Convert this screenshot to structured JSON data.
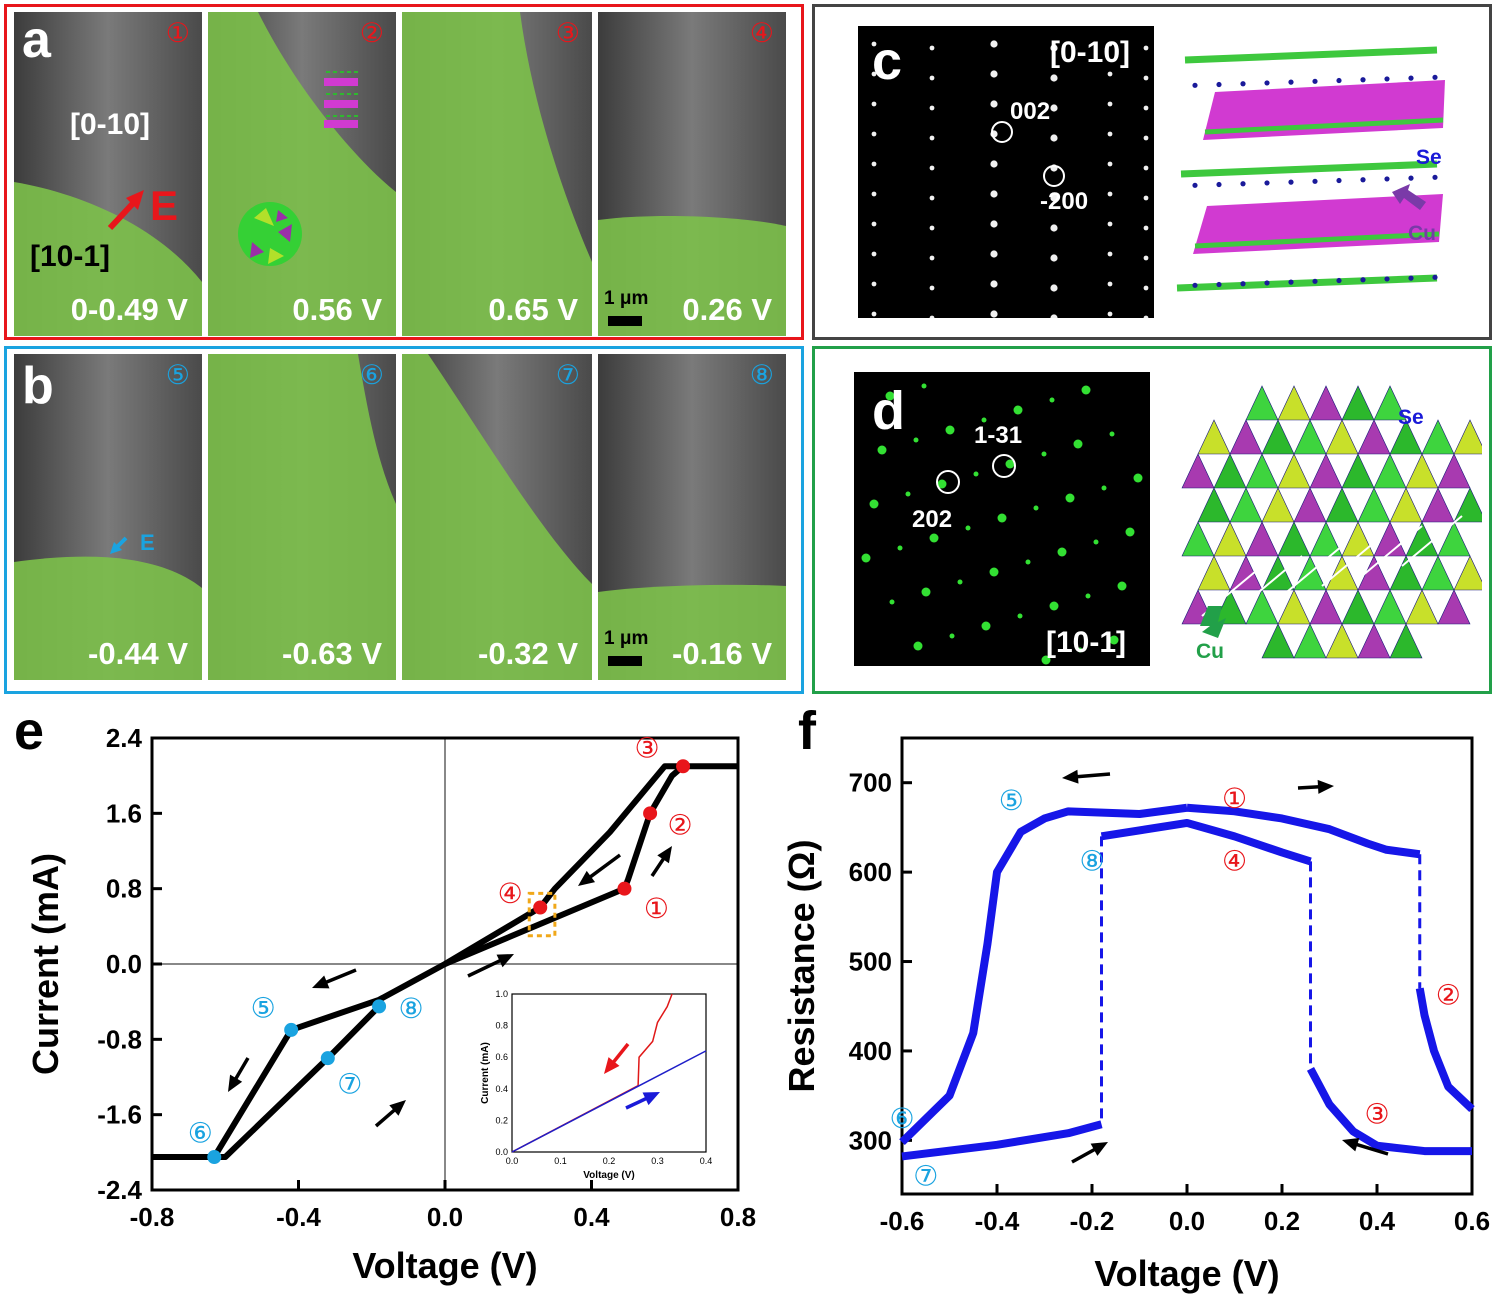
{
  "colors": {
    "red": "#e8161b",
    "blue": "#1aa3e0",
    "green_frame": "#22a049",
    "dark_frame": "#444444",
    "phase_green": "#7cc04a",
    "curve_black": "#000000",
    "curve_blue": "#1616e8",
    "inset_red": "#e01818",
    "inset_blue": "#1e1ec8"
  },
  "panel_a": {
    "letter": "a",
    "frames": [
      {
        "num": "①",
        "voltage": "0-0.49 V"
      },
      {
        "num": "②",
        "voltage": "0.56 V"
      },
      {
        "num": "③",
        "voltage": "0.65 V"
      },
      {
        "num": "④",
        "voltage": "0.26 V"
      }
    ],
    "zone_upper": "[0-10]",
    "zone_lower": "[10-1]",
    "field": "E",
    "scale": "1 μm"
  },
  "panel_b": {
    "letter": "b",
    "frames": [
      {
        "num": "⑤",
        "voltage": "-0.44 V"
      },
      {
        "num": "⑥",
        "voltage": "-0.63 V"
      },
      {
        "num": "⑦",
        "voltage": "-0.32 V"
      },
      {
        "num": "⑧",
        "voltage": "-0.16 V"
      }
    ],
    "field": "E",
    "scale": "1 μm"
  },
  "panel_c": {
    "letter": "c",
    "zone": "[0-10]",
    "spot1": "002",
    "spot2": "-200",
    "atom_se": "Se",
    "atom_cu": "Cu"
  },
  "panel_d": {
    "letter": "d",
    "zone": "[10-1]",
    "spot1": "1-31",
    "spot2": "202",
    "atom_se": "Se",
    "atom_cu": "Cu"
  },
  "chart_data": [
    {
      "panel": "e",
      "type": "line",
      "xlabel": "Voltage (V)",
      "ylabel": "Current (mA)",
      "xlim": [
        -0.8,
        0.8
      ],
      "ylim": [
        -2.4,
        2.4
      ],
      "xticks": [
        "-0.8",
        "-0.4",
        "0.0",
        "0.4",
        "0.8"
      ],
      "yticks": [
        "2.4",
        "1.6",
        "0.8",
        "0.0",
        "-0.8",
        "-1.6",
        "-2.4"
      ],
      "series": [
        {
          "values": [
            [
              0,
              0
            ],
            [
              0.49,
              0.8
            ],
            [
              0.5,
              0.9
            ],
            [
              0.56,
              1.6
            ],
            [
              0.62,
              2.0
            ],
            [
              0.65,
              2.1
            ],
            [
              0.8,
              2.1
            ]
          ]
        },
        {
          "values": [
            [
              0.65,
              2.1
            ],
            [
              0.6,
              2.1
            ],
            [
              0.45,
              1.4
            ],
            [
              0.3,
              0.8
            ],
            [
              0.26,
              0.6
            ],
            [
              0,
              0
            ],
            [
              -0.18,
              -0.38
            ],
            [
              -0.42,
              -0.7
            ],
            [
              -0.63,
              -2.05
            ],
            [
              -0.8,
              -2.05
            ]
          ]
        },
        {
          "values": [
            [
              -0.63,
              -2.05
            ],
            [
              -0.6,
              -2.05
            ],
            [
              -0.32,
              -1.0
            ],
            [
              -0.18,
              -0.45
            ]
          ]
        }
      ],
      "markers": [
        {
          "label": "①",
          "x": 0.49,
          "y": 0.8,
          "color": "red"
        },
        {
          "label": "②",
          "x": 0.56,
          "y": 1.6,
          "color": "red"
        },
        {
          "label": "③",
          "x": 0.65,
          "y": 2.1,
          "color": "red"
        },
        {
          "label": "④",
          "x": 0.26,
          "y": 0.6,
          "color": "red"
        },
        {
          "label": "⑤",
          "x": -0.42,
          "y": -0.7,
          "color": "blue"
        },
        {
          "label": "⑥",
          "x": -0.63,
          "y": -2.05,
          "color": "blue"
        },
        {
          "label": "⑦",
          "x": -0.32,
          "y": -1.0,
          "color": "blue"
        },
        {
          "label": "⑧",
          "x": -0.18,
          "y": -0.45,
          "color": "blue"
        }
      ],
      "inset": {
        "xlabel": "Voltage (V)",
        "ylabel": "Current (mA)",
        "xlim": [
          0,
          0.4
        ],
        "ylim": [
          0,
          1.0
        ],
        "xticks": [
          "0.0",
          "0.1",
          "0.2",
          "0.3",
          "0.4"
        ],
        "yticks": [
          "0.0",
          "0.2",
          "0.4",
          "0.6",
          "0.8",
          "1.0"
        ],
        "series": [
          {
            "color": "red",
            "values": [
              [
                0,
                0
              ],
              [
                0.26,
                0.42
              ],
              [
                0.262,
                0.6
              ],
              [
                0.29,
                0.7
              ],
              [
                0.3,
                0.82
              ],
              [
                0.32,
                0.92
              ],
              [
                0.33,
                1.0
              ]
            ]
          },
          {
            "color": "blue",
            "values": [
              [
                0,
                0
              ],
              [
                0.4,
                0.64
              ]
            ]
          }
        ]
      }
    },
    {
      "panel": "f",
      "type": "line",
      "xlabel": "Voltage (V)",
      "ylabel": "Resistance (Ω)",
      "xlim": [
        -0.6,
        0.6
      ],
      "ylim": [
        240,
        750
      ],
      "xticks": [
        "-0.6",
        "-0.4",
        "-0.2",
        "0.0",
        "0.2",
        "0.4",
        "0.6"
      ],
      "yticks": [
        "700",
        "600",
        "500",
        "400",
        "300"
      ],
      "series": [
        {
          "values": [
            [
              0,
              672
            ],
            [
              0.1,
              668
            ],
            [
              0.2,
              660
            ],
            [
              0.3,
              648
            ],
            [
              0.38,
              632
            ],
            [
              0.42,
              625
            ],
            [
              0.49,
              620
            ]
          ]
        },
        {
          "values": [
            [
              0.49,
              470
            ],
            [
              0.5,
              440
            ],
            [
              0.52,
              400
            ],
            [
              0.55,
              360
            ],
            [
              0.6,
              335
            ]
          ]
        },
        {
          "values": [
            [
              0.6,
              288
            ],
            [
              0.5,
              288
            ],
            [
              0.4,
              294
            ],
            [
              0.35,
              310
            ],
            [
              0.3,
              340
            ],
            [
              0.27,
              370
            ],
            [
              0.26,
              380
            ]
          ]
        },
        {
          "values": [
            [
              0.26,
              612
            ],
            [
              0.2,
              622
            ],
            [
              0.1,
              640
            ],
            [
              0,
              655
            ],
            [
              -0.18,
              640
            ]
          ]
        },
        {
          "values": [
            [
              -0.18,
              318
            ],
            [
              -0.25,
              308
            ],
            [
              -0.4,
              295
            ],
            [
              -0.6,
              282
            ]
          ]
        },
        {
          "values": [
            [
              -0.6,
              298
            ],
            [
              -0.5,
              350
            ],
            [
              -0.45,
              420
            ],
            [
              -0.42,
              520
            ],
            [
              -0.4,
              600
            ],
            [
              -0.35,
              645
            ],
            [
              -0.3,
              660
            ],
            [
              -0.25,
              668
            ],
            [
              -0.1,
              665
            ],
            [
              0,
              672
            ]
          ]
        }
      ],
      "markers": [
        {
          "label": "①",
          "x": 0.1,
          "y": 680,
          "color": "red"
        },
        {
          "label": "②",
          "x": 0.55,
          "y": 460,
          "color": "red"
        },
        {
          "label": "③",
          "x": 0.4,
          "y": 327,
          "color": "red"
        },
        {
          "label": "④",
          "x": 0.1,
          "y": 610,
          "color": "red"
        },
        {
          "label": "⑤",
          "x": -0.37,
          "y": 678,
          "color": "blue"
        },
        {
          "label": "⑥",
          "x": -0.6,
          "y": 322,
          "color": "blue"
        },
        {
          "label": "⑦",
          "x": -0.55,
          "y": 258,
          "color": "blue"
        },
        {
          "label": "⑧",
          "x": -0.2,
          "y": 610,
          "color": "blue"
        }
      ]
    }
  ]
}
